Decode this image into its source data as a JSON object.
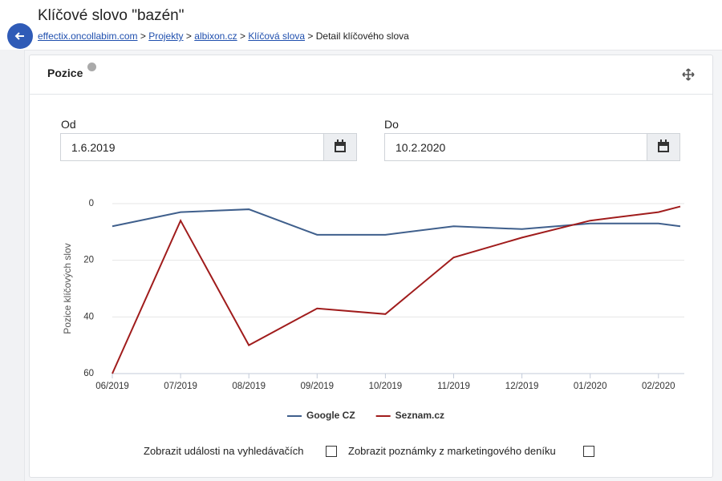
{
  "header": {
    "title": "Klíčové slovo \"bazén\""
  },
  "breadcrumb": {
    "links": [
      "effectix.oncollabim.com",
      "Projekty",
      "albixon.cz",
      "Klíčová slova"
    ],
    "separator": ">",
    "current": "Detail klíčového slova"
  },
  "panel": {
    "title": "Pozice"
  },
  "filters": {
    "from_label": "Od",
    "from_value": "1.6.2019",
    "to_label": "Do",
    "to_value": "10.2.2020"
  },
  "options": [
    "Zobrazit události na vyhledávačích",
    "Zobrazit poznámky z marketingového deníku"
  ],
  "chart_data": {
    "type": "line",
    "y_label": "Pozice klíčových slov",
    "categories": [
      "06/2019",
      "07/2019",
      "08/2019",
      "09/2019",
      "10/2019",
      "11/2019",
      "12/2019",
      "01/2020",
      "02/2020",
      null
    ],
    "series": [
      {
        "name": "Google CZ",
        "color": "#3f5f8c",
        "values": [
          8,
          3,
          2,
          11,
          11,
          8,
          9,
          7,
          7,
          8
        ]
      },
      {
        "name": "Seznam.cz",
        "color": "#a01c1c",
        "values": [
          60,
          6,
          50,
          37,
          39,
          19,
          12,
          6,
          3,
          1
        ]
      }
    ],
    "ylim": [
      0,
      60
    ],
    "yticks": [
      0,
      20,
      40,
      60
    ],
    "y_inverted": true,
    "grid": true,
    "legend": "bottom"
  }
}
